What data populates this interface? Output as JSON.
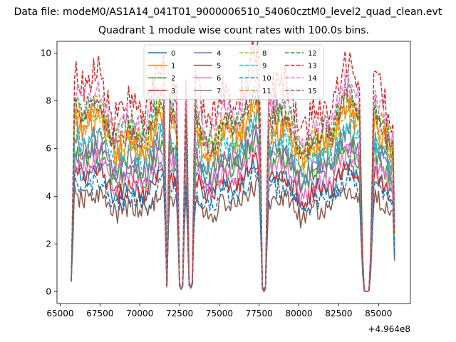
{
  "figure": {
    "suptitle": "Data file: modeM0/AS1A14_041T01_9000006510_54060cztM0_level2_quad_clean.evt"
  },
  "chart_data": {
    "type": "line",
    "title": "Quadrant 1 module wise count rates with 100.0s bins.",
    "xlabel": "",
    "ylabel": "",
    "x_offset_label": "+4.964e8",
    "xlim": [
      64800,
      87000
    ],
    "ylim": [
      -0.5,
      10.5
    ],
    "x_ticks": [
      65000,
      67500,
      70000,
      72500,
      75000,
      77500,
      80000,
      82500,
      85000
    ],
    "x_tick_labels": [
      "65000",
      "67500",
      "70000",
      "72500",
      "75000",
      "77500",
      "80000",
      "82500",
      "85000"
    ],
    "y_ticks": [
      0,
      2,
      4,
      6,
      8,
      10
    ],
    "y_tick_labels": [
      "0",
      "2",
      "4",
      "6",
      "8",
      "10"
    ],
    "x": {
      "start": 65700,
      "step": 100,
      "count": 204
    },
    "gaps": [
      {
        "from": 71600,
        "to": 71800,
        "floor": 0.2
      },
      {
        "from": 72400,
        "to": 72800,
        "floor": 0.1
      },
      {
        "from": 73000,
        "to": 73400,
        "floor": 0.15
      },
      {
        "from": 77600,
        "to": 78000,
        "floor": 0.0
      },
      {
        "from": 83900,
        "to": 84600,
        "floor": 0.0
      }
    ],
    "legend": {
      "placement": "upper center",
      "ncol": 4
    },
    "series": [
      {
        "name": "0",
        "color": "#1f77b4",
        "dash": "solid",
        "base": 4.6,
        "amp": 0.5
      },
      {
        "name": "1",
        "color": "#ff7f0e",
        "dash": "solid",
        "base": 6.5,
        "amp": 0.8
      },
      {
        "name": "2",
        "color": "#2ca02c",
        "dash": "solid",
        "base": 5.3,
        "amp": 0.6
      },
      {
        "name": "3",
        "color": "#d62728",
        "dash": "solid",
        "base": 4.6,
        "amp": 0.5
      },
      {
        "name": "4",
        "color": "#9467bd",
        "dash": "solid",
        "base": 5.5,
        "amp": 0.6
      },
      {
        "name": "5",
        "color": "#8c564b",
        "dash": "solid",
        "base": 3.7,
        "amp": 0.5
      },
      {
        "name": "6",
        "color": "#e377c2",
        "dash": "solid",
        "base": 5.0,
        "amp": 0.5
      },
      {
        "name": "7",
        "color": "#7f7f7f",
        "dash": "solid",
        "base": 5.8,
        "amp": 0.6
      },
      {
        "name": "8",
        "color": "#bcbd22",
        "dash": "dashed",
        "base": 6.7,
        "amp": 0.7
      },
      {
        "name": "9",
        "color": "#17becf",
        "dash": "dashed",
        "base": 6.0,
        "amp": 0.6
      },
      {
        "name": "10",
        "color": "#1f77b4",
        "dash": "dashed",
        "base": 4.1,
        "amp": 0.5
      },
      {
        "name": "11",
        "color": "#ff7f0e",
        "dash": "dashed",
        "base": 6.9,
        "amp": 0.7
      },
      {
        "name": "12",
        "color": "#2ca02c",
        "dash": "dashed",
        "base": 7.3,
        "amp": 0.7
      },
      {
        "name": "13",
        "color": "#d62728",
        "dash": "dashed",
        "base": 8.3,
        "amp": 0.8
      },
      {
        "name": "14",
        "color": "#e377c2",
        "dash": "dashed",
        "base": 7.6,
        "amp": 0.7
      },
      {
        "name": "15",
        "color": "#8c564b",
        "dash": "dashed",
        "base": 7.0,
        "amp": 0.6
      }
    ]
  }
}
